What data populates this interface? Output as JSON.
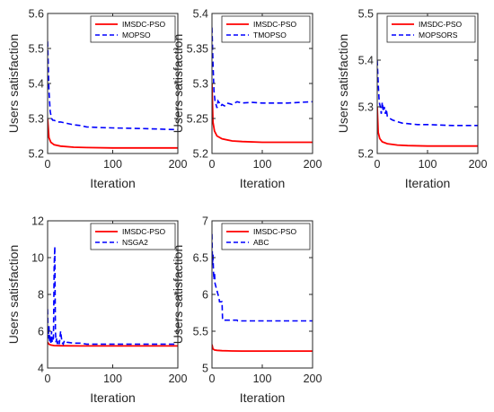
{
  "colors": {
    "primary": "#ff0000",
    "compare": "#0000ff",
    "axis": "#262626"
  },
  "chart_data": [
    {
      "type": "line",
      "xlabel": "Iteration",
      "ylabel": "Users satisfaction",
      "xlim": [
        0,
        200
      ],
      "ylim": [
        5.2,
        5.6
      ],
      "xticks": [
        "0",
        "100",
        "200"
      ],
      "yticks": [
        "5.2",
        "5.3",
        "5.4",
        "5.5",
        "5.6"
      ],
      "legend": "top-right",
      "series": [
        {
          "name": "IMSDC-PSO",
          "style": "solid",
          "color": "#ff0000",
          "x": [
            0,
            2,
            5,
            10,
            20,
            40,
            60,
            100,
            150,
            200
          ],
          "values": [
            5.3,
            5.245,
            5.232,
            5.225,
            5.221,
            5.218,
            5.217,
            5.216,
            5.216,
            5.216
          ]
        },
        {
          "name": "MOPSO",
          "style": "dashed",
          "color": "#0000ff",
          "x": [
            0,
            2,
            4,
            6,
            8,
            10,
            15,
            20,
            30,
            40,
            50,
            60,
            80,
            100,
            150,
            200
          ],
          "values": [
            5.52,
            5.38,
            5.32,
            5.3,
            5.295,
            5.295,
            5.29,
            5.29,
            5.286,
            5.282,
            5.28,
            5.276,
            5.274,
            5.273,
            5.271,
            5.268
          ]
        }
      ]
    },
    {
      "type": "line",
      "xlabel": "Iteration",
      "ylabel": "Users satisfaction",
      "xlim": [
        0,
        200
      ],
      "ylim": [
        5.2,
        5.4
      ],
      "xticks": [
        "0",
        "100",
        "200"
      ],
      "yticks": [
        "5.2",
        "5.25",
        "5.3",
        "5.35",
        "5.4"
      ],
      "legend": "top-right",
      "series": [
        {
          "name": "IMSDC-PSO",
          "style": "solid",
          "color": "#ff0000",
          "x": [
            0,
            2,
            5,
            10,
            20,
            40,
            60,
            100,
            150,
            200
          ],
          "values": [
            5.3,
            5.245,
            5.232,
            5.225,
            5.221,
            5.218,
            5.217,
            5.216,
            5.216,
            5.216
          ]
        },
        {
          "name": "TMOPSO",
          "style": "dashed",
          "color": "#0000ff",
          "x": [
            0,
            2,
            4,
            6,
            8,
            10,
            12,
            15,
            18,
            20,
            25,
            30,
            40,
            50,
            60,
            80,
            100,
            150,
            200
          ],
          "values": [
            5.38,
            5.33,
            5.29,
            5.275,
            5.27,
            5.265,
            5.275,
            5.272,
            5.268,
            5.27,
            5.268,
            5.272,
            5.27,
            5.274,
            5.272,
            5.273,
            5.272,
            5.272,
            5.274
          ]
        }
      ]
    },
    {
      "type": "line",
      "xlabel": "Iteration",
      "ylabel": "Users satisfaction",
      "xlim": [
        0,
        200
      ],
      "ylim": [
        5.2,
        5.5
      ],
      "xticks": [
        "0",
        "100",
        "200"
      ],
      "yticks": [
        "5.2",
        "5.3",
        "5.4",
        "5.5"
      ],
      "legend": "top-right",
      "series": [
        {
          "name": "IMSDC-PSO",
          "style": "solid",
          "color": "#ff0000",
          "x": [
            0,
            2,
            5,
            10,
            20,
            40,
            60,
            100,
            150,
            200
          ],
          "values": [
            5.3,
            5.245,
            5.232,
            5.225,
            5.221,
            5.218,
            5.217,
            5.216,
            5.216,
            5.216
          ]
        },
        {
          "name": "MOPSORS",
          "style": "dashed",
          "color": "#0000ff",
          "x": [
            0,
            2,
            4,
            6,
            8,
            10,
            12,
            14,
            16,
            18,
            20,
            25,
            30,
            40,
            50,
            60,
            80,
            100,
            150,
            200
          ],
          "values": [
            5.4,
            5.35,
            5.31,
            5.3,
            5.285,
            5.31,
            5.29,
            5.3,
            5.285,
            5.295,
            5.28,
            5.275,
            5.272,
            5.268,
            5.265,
            5.264,
            5.262,
            5.262,
            5.26,
            5.26
          ]
        }
      ]
    },
    {
      "type": "line",
      "xlabel": "Iteration",
      "ylabel": "Users satisfaction",
      "xlim": [
        0,
        200
      ],
      "ylim": [
        4,
        12
      ],
      "xticks": [
        "0",
        "100",
        "200"
      ],
      "yticks": [
        "4",
        "6",
        "8",
        "10",
        "12"
      ],
      "legend": "top-right",
      "series": [
        {
          "name": "IMSDC-PSO",
          "style": "solid",
          "color": "#ff0000",
          "x": [
            0,
            2,
            5,
            10,
            20,
            50,
            100,
            150,
            200
          ],
          "values": [
            5.4,
            5.3,
            5.25,
            5.22,
            5.21,
            5.2,
            5.2,
            5.2,
            5.2
          ]
        },
        {
          "name": "NSGA2",
          "style": "dashed",
          "color": "#0000ff",
          "x": [
            0,
            1,
            2,
            3,
            4,
            5,
            6,
            7,
            8,
            9,
            10,
            11,
            12,
            13,
            14,
            15,
            16,
            18,
            20,
            22,
            24,
            26,
            30,
            40,
            50,
            60,
            80,
            100,
            150,
            200
          ],
          "values": [
            7.2,
            5.6,
            6.3,
            5.4,
            5.8,
            5.3,
            6.0,
            5.4,
            5.5,
            5.6,
            9.5,
            10.6,
            6.0,
            5.4,
            5.6,
            5.3,
            5.5,
            5.3,
            6.0,
            5.4,
            5.3,
            5.5,
            5.4,
            5.35,
            5.35,
            5.3,
            5.3,
            5.3,
            5.3,
            5.3
          ]
        }
      ]
    },
    {
      "type": "line",
      "xlabel": "Iteration",
      "ylabel": "Users satisfaction",
      "xlim": [
        0,
        200
      ],
      "ylim": [
        5,
        7
      ],
      "xticks": [
        "0",
        "100",
        "200"
      ],
      "yticks": [
        "5",
        "5.5",
        "6",
        "6.5",
        "7"
      ],
      "legend": "top-right",
      "series": [
        {
          "name": "IMSDC-PSO",
          "style": "solid",
          "color": "#ff0000",
          "x": [
            0,
            2,
            5,
            10,
            20,
            40,
            60,
            100,
            150,
            200
          ],
          "values": [
            5.32,
            5.26,
            5.245,
            5.24,
            5.235,
            5.232,
            5.23,
            5.23,
            5.23,
            5.23
          ]
        },
        {
          "name": "ABC",
          "style": "dashed",
          "color": "#0000ff",
          "x": [
            0,
            1,
            2,
            3,
            4,
            5,
            6,
            8,
            10,
            12,
            14,
            15,
            20,
            21,
            25,
            50,
            51,
            100,
            150,
            200
          ],
          "values": [
            6.82,
            6.4,
            6.55,
            6.3,
            6.2,
            6.3,
            6.15,
            6.1,
            6.05,
            6.0,
            5.95,
            5.9,
            5.9,
            5.65,
            5.65,
            5.65,
            5.64,
            5.64,
            5.64,
            5.64
          ]
        }
      ]
    }
  ]
}
